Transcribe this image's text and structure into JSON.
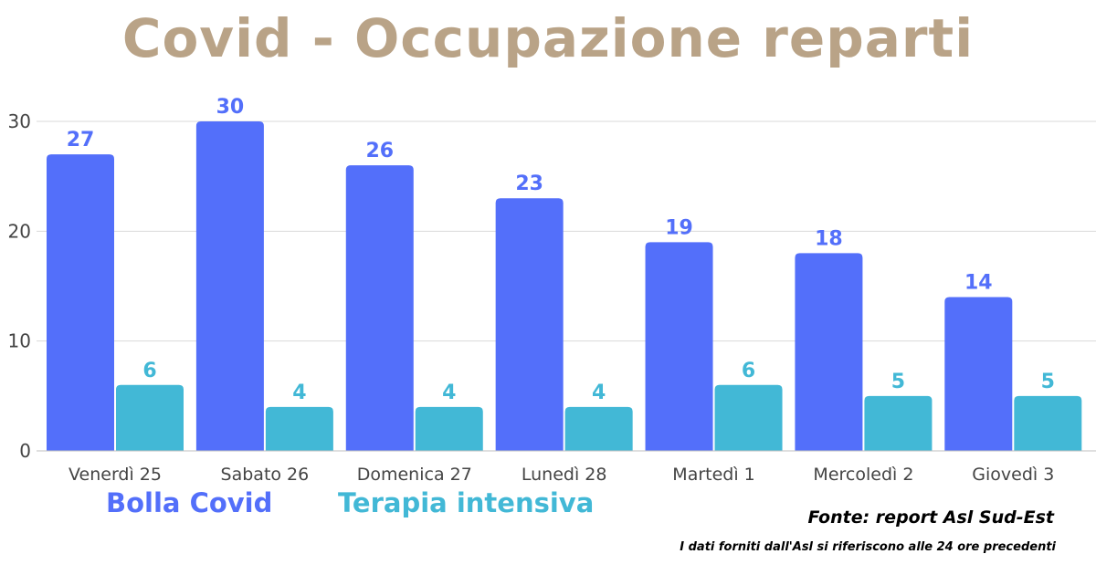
{
  "chart_data": {
    "type": "bar",
    "title": "Covid - Occupazione reparti",
    "categories": [
      "Venerdì 25",
      "Sabato 26",
      "Domenica 27",
      "Lunedì 28",
      "Martedì 1",
      "Mercoledì 2",
      "Giovedì 3"
    ],
    "series": [
      {
        "name": "Bolla Covid",
        "color": "#536ffa",
        "values": [
          27,
          30,
          26,
          23,
          19,
          18,
          14
        ]
      },
      {
        "name": "Terapia intensiva",
        "color": "#42b8d6",
        "values": [
          6,
          4,
          4,
          4,
          6,
          5,
          5
        ]
      }
    ],
    "yticks": [
      0,
      10,
      20,
      30
    ],
    "ylim": [
      0,
      30
    ],
    "grid": true,
    "legend_position": "bottom-left"
  },
  "source_label": "Fonte: report Asl Sud-Est",
  "note": "I dati forniti dall'Asl si riferiscono alle 24 ore precedenti",
  "colors": {
    "title": "#b9a387",
    "grid": "#d9d9d9",
    "axis_text": "#444444"
  }
}
